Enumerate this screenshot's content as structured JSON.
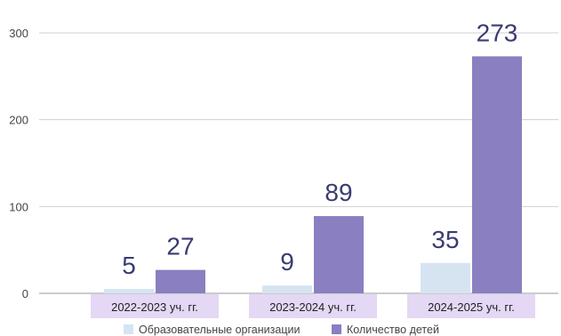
{
  "chart_data": {
    "type": "bar",
    "title": "",
    "xlabel": "",
    "ylabel": "",
    "categories": [
      "2022-2023 уч. гг.",
      "2023-2024 уч. гг.",
      "2024-2025 уч. гг."
    ],
    "series": [
      {
        "name": "Образовательные организации",
        "values": [
          5,
          9,
          35
        ],
        "color": "#d6e4f2"
      },
      {
        "name": "Количество детей",
        "values": [
          27,
          89,
          273
        ],
        "color": "#8a7fc1"
      }
    ],
    "ylim": [
      0,
      300
    ],
    "yticks": [
      0,
      100,
      200,
      300
    ],
    "grid": true,
    "legend_position": "bottom",
    "category_label_background": "#e4d8f5"
  }
}
